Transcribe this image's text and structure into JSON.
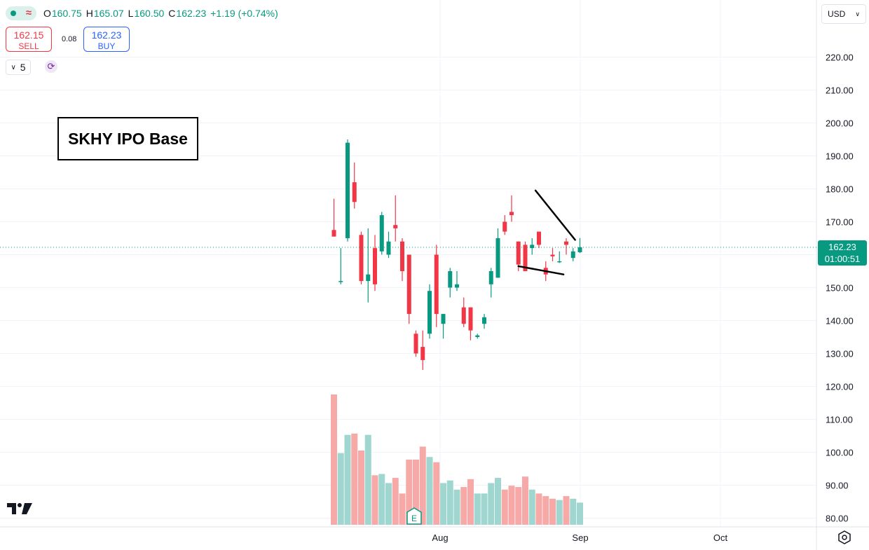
{
  "header": {
    "o_label": "O",
    "o": "160.75",
    "h_label": "H",
    "h": "165.07",
    "l_label": "L",
    "l": "160.50",
    "c_label": "C",
    "c": "162.23",
    "change": "+1.19 (+0.74%)"
  },
  "trade": {
    "sell_price": "162.15",
    "sell_label": "SELL",
    "spread": "0.08",
    "buy_price": "162.23",
    "buy_label": "BUY",
    "quantity": "5"
  },
  "currency": "USD",
  "annotation": "SKHY IPO Base",
  "last_price_badge": {
    "price": "162.23",
    "countdown": "01:00:51"
  },
  "icons": {
    "status": "market-status-icon",
    "quantity_toggle": "chevron-down-icon",
    "sync": "sync-icon",
    "currency_toggle": "chevron-down-icon",
    "logo": "tradingview-logo-icon",
    "settings": "settings-icon",
    "earnings": "earnings-icon"
  },
  "colors": {
    "up": "#089981",
    "down": "#f23645",
    "up_volume": "#9fd6cf",
    "down_volume": "#f7a9a7",
    "trendline": "#000000",
    "grid": "#f0f3fa",
    "price_line": "#089981"
  },
  "chart_data": {
    "type": "candlestick",
    "title": "",
    "y_ticks": [
      "220.00",
      "210.00",
      "200.00",
      "190.00",
      "180.00",
      "170.00",
      "160.00",
      "150.00",
      "140.00",
      "130.00",
      "120.00",
      "110.00",
      "100.00",
      "90.00",
      "80.00"
    ],
    "x_ticks": [
      "Aug",
      "Sep",
      "Oct"
    ],
    "ylim": [
      77.5,
      225
    ],
    "last_price": 162.23,
    "earnings_marker": "E",
    "candles": [
      {
        "o": 167.5,
        "h": 177,
        "l": 165.5,
        "c": 165.5
      },
      {
        "o": 152,
        "h": 162,
        "l": 151,
        "c": 152
      },
      {
        "o": 165,
        "h": 195,
        "l": 164,
        "c": 194
      },
      {
        "o": 182,
        "h": 188,
        "l": 174,
        "c": 176
      },
      {
        "o": 166,
        "h": 167,
        "l": 151,
        "c": 152
      },
      {
        "o": 152,
        "h": 168,
        "l": 145.5,
        "c": 154
      },
      {
        "o": 162,
        "h": 166,
        "l": 149,
        "c": 151
      },
      {
        "o": 161,
        "h": 173,
        "l": 160,
        "c": 172
      },
      {
        "o": 160,
        "h": 167,
        "l": 159,
        "c": 164
      },
      {
        "o": 169,
        "h": 178,
        "l": 164,
        "c": 168
      },
      {
        "o": 164,
        "h": 165,
        "l": 152,
        "c": 155
      },
      {
        "o": 160,
        "h": 160,
        "l": 139,
        "c": 142
      },
      {
        "o": 136,
        "h": 137,
        "l": 129,
        "c": 130
      },
      {
        "o": 132,
        "h": 137,
        "l": 125,
        "c": 128
      },
      {
        "o": 136,
        "h": 151,
        "l": 134.5,
        "c": 149
      },
      {
        "o": 160,
        "h": 163,
        "l": 138,
        "c": 142
      },
      {
        "o": 139,
        "h": 142,
        "l": 134.5,
        "c": 142
      },
      {
        "o": 150,
        "h": 156,
        "l": 147,
        "c": 155
      },
      {
        "o": 150,
        "h": 155,
        "l": 149,
        "c": 151
      },
      {
        "o": 144,
        "h": 147,
        "l": 138,
        "c": 139
      },
      {
        "o": 144,
        "h": 144,
        "l": 134,
        "c": 137
      },
      {
        "o": 135,
        "h": 136,
        "l": 134.5,
        "c": 135.5
      },
      {
        "o": 139,
        "h": 142,
        "l": 137.5,
        "c": 141
      },
      {
        "o": 151,
        "h": 156,
        "l": 147,
        "c": 155
      },
      {
        "o": 153,
        "h": 168,
        "l": 153,
        "c": 165
      },
      {
        "o": 170,
        "h": 172,
        "l": 166,
        "c": 167
      },
      {
        "o": 173,
        "h": 178,
        "l": 170,
        "c": 172
      },
      {
        "o": 164,
        "h": 164,
        "l": 155,
        "c": 157
      },
      {
        "o": 163,
        "h": 164,
        "l": 155,
        "c": 155
      },
      {
        "o": 162,
        "h": 165,
        "l": 160,
        "c": 163
      },
      {
        "o": 167,
        "h": 167,
        "l": 162,
        "c": 163
      },
      {
        "o": 156,
        "h": 158,
        "l": 152,
        "c": 154
      },
      {
        "o": 160,
        "h": 162,
        "l": 158,
        "c": 159.5
      },
      {
        "o": 158,
        "h": 161,
        "l": 157.5,
        "c": 158
      },
      {
        "o": 164,
        "h": 165,
        "l": 160,
        "c": 163
      },
      {
        "o": 159,
        "h": 162,
        "l": 158,
        "c": 161
      },
      {
        "o": 160.75,
        "h": 165.07,
        "l": 160.5,
        "c": 162.23
      }
    ],
    "volume_scale": [
      0,
      100
    ],
    "volumes": [
      100,
      55,
      69,
      70,
      57,
      69,
      38,
      39,
      32,
      36,
      24,
      50,
      50,
      60,
      52,
      48,
      32,
      34,
      27,
      29,
      35,
      24,
      24,
      32,
      36,
      27,
      30,
      29,
      37,
      27,
      24,
      22,
      20,
      19,
      22,
      20,
      17
    ],
    "trendlines": [
      {
        "x1": 29.5,
        "y1": 179.5,
        "x2": 35.3,
        "y2": 164.5
      },
      {
        "x1": 27,
        "y1": 156.5,
        "x2": 33.6,
        "y2": 154
      }
    ]
  }
}
